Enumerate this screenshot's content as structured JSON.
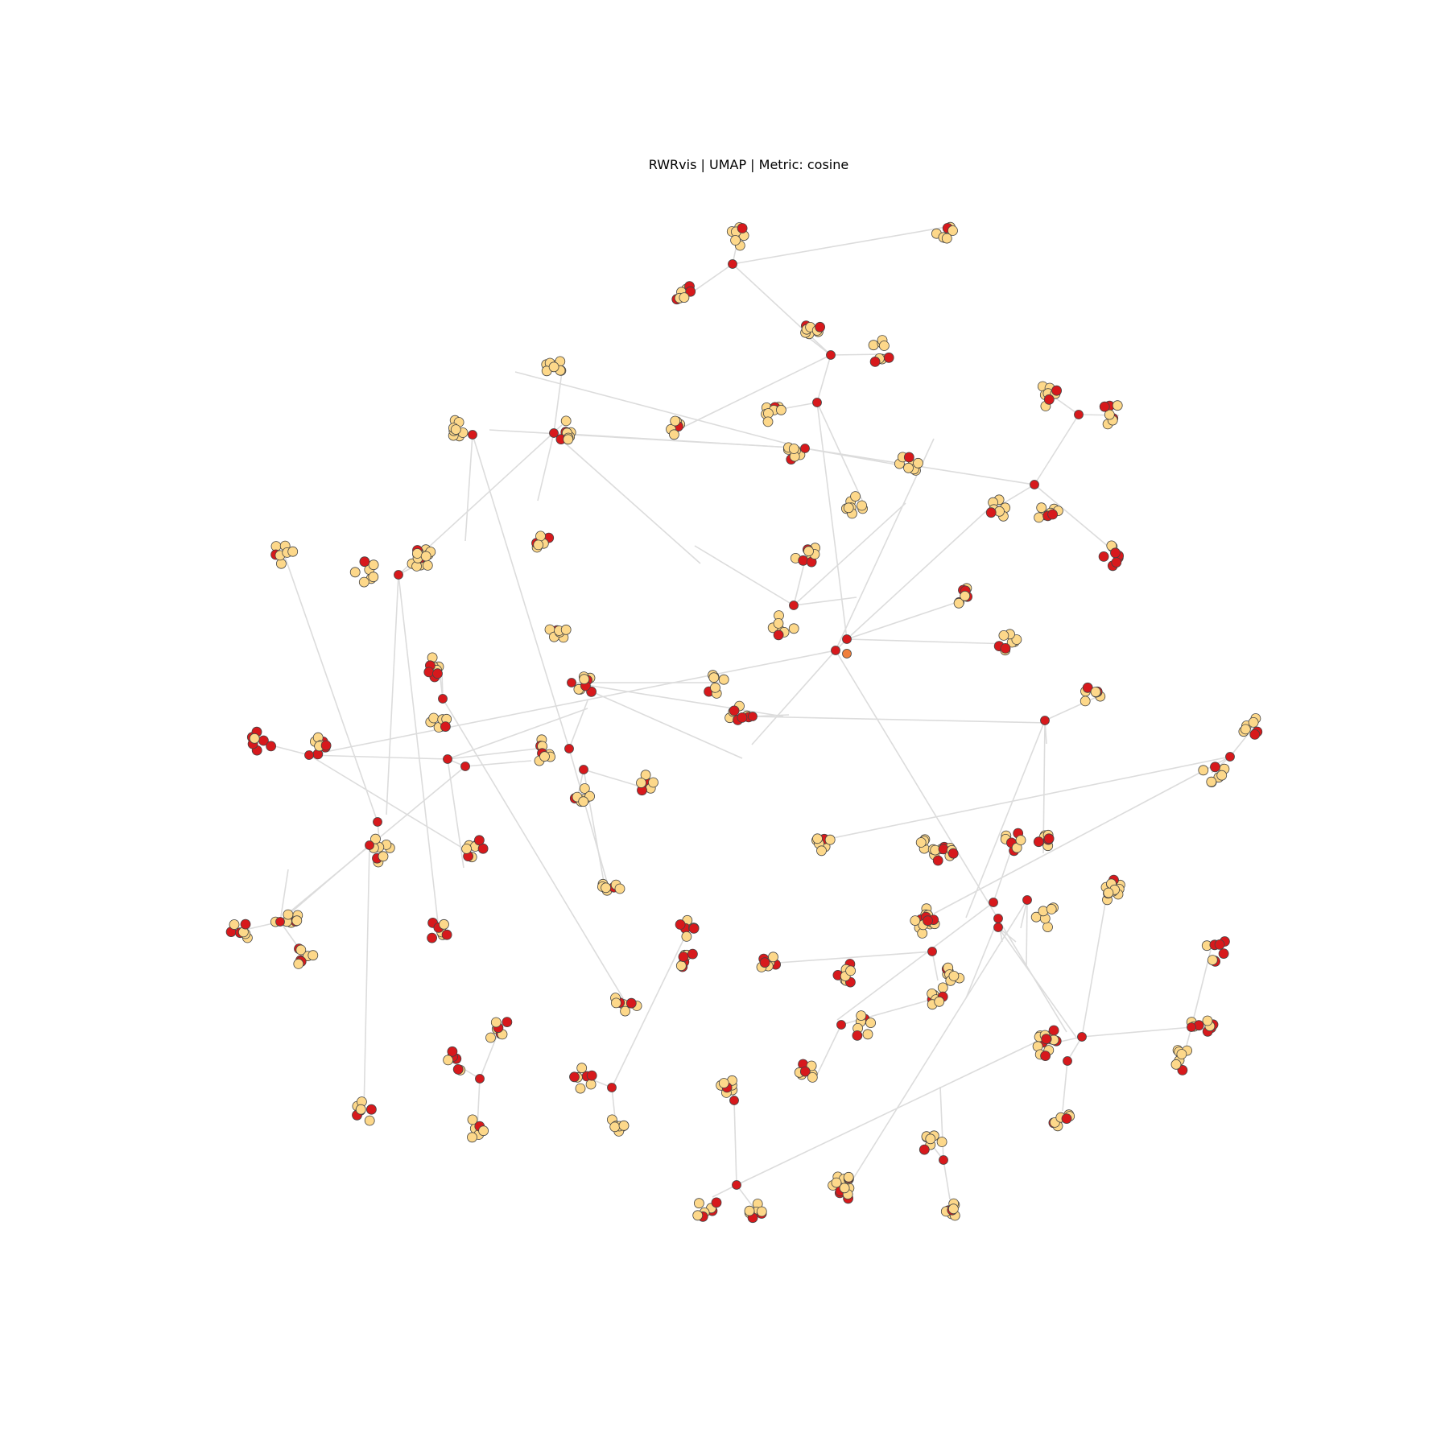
{
  "title": "RWRvis | UMAP | Metric: cosine",
  "colors": {
    "background": "#ffffff",
    "edge": "#dcdcdc",
    "hub_node": "#d7191c",
    "leaf_node": "#fdd88a",
    "seed_node": "#f07f3c",
    "node_outline": "#444444"
  },
  "graph_data": {
    "type": "network",
    "layout": "UMAP",
    "metric": "cosine"
  }
}
